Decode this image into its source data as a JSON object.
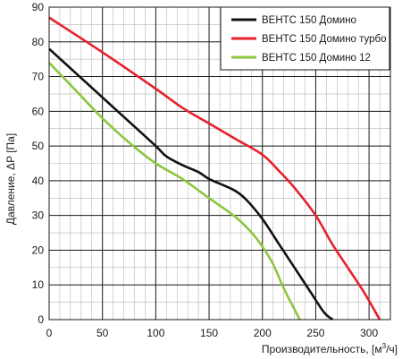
{
  "chart_data": {
    "type": "line",
    "title": "",
    "xlabel": "Производительность, [м",
    "xlabel_sup": "3",
    "xlabel_end": "/ч]",
    "ylabel": "Давление, ΔP [Па]",
    "xlim": [
      0,
      320
    ],
    "ylim": [
      0,
      90
    ],
    "x_ticks": [
      0,
      50,
      100,
      150,
      200,
      250,
      300
    ],
    "y_ticks": [
      0,
      10,
      20,
      30,
      40,
      50,
      60,
      70,
      80,
      90
    ],
    "x_grid_step": 10,
    "y_grid_step": 5,
    "grid": true,
    "legend_position": "top-right",
    "series": [
      {
        "name": "ВЕНТС 150 Домино",
        "color": "#111111",
        "points": [
          [
            0,
            78
          ],
          [
            25,
            71
          ],
          [
            50,
            64
          ],
          [
            75,
            57
          ],
          [
            100,
            50
          ],
          [
            110,
            47
          ],
          [
            125,
            44.5
          ],
          [
            140,
            42.5
          ],
          [
            150,
            40.5
          ],
          [
            165,
            38.5
          ],
          [
            175,
            37
          ],
          [
            185,
            34.5
          ],
          [
            200,
            29
          ],
          [
            215,
            22
          ],
          [
            230,
            15
          ],
          [
            245,
            8
          ],
          [
            258,
            2
          ],
          [
            266,
            0
          ]
        ]
      },
      {
        "name": "ВЕНТС 150 Домино турбо",
        "color": "#e8202a",
        "points": [
          [
            0,
            87
          ],
          [
            50,
            77
          ],
          [
            100,
            66.5
          ],
          [
            125,
            61
          ],
          [
            150,
            56.5
          ],
          [
            175,
            52
          ],
          [
            200,
            47.5
          ],
          [
            215,
            43
          ],
          [
            230,
            38
          ],
          [
            250,
            30
          ],
          [
            265,
            22
          ],
          [
            280,
            15
          ],
          [
            295,
            8
          ],
          [
            310,
            0
          ]
        ]
      },
      {
        "name": "ВЕНТС 150 Домино 12",
        "color": "#8cc63f",
        "points": [
          [
            0,
            74
          ],
          [
            25,
            66
          ],
          [
            50,
            58
          ],
          [
            75,
            51
          ],
          [
            100,
            45
          ],
          [
            125,
            40.5
          ],
          [
            150,
            35
          ],
          [
            175,
            29.5
          ],
          [
            190,
            25
          ],
          [
            200,
            21
          ],
          [
            210,
            16
          ],
          [
            220,
            9
          ],
          [
            230,
            3
          ],
          [
            235,
            0
          ]
        ]
      }
    ]
  }
}
